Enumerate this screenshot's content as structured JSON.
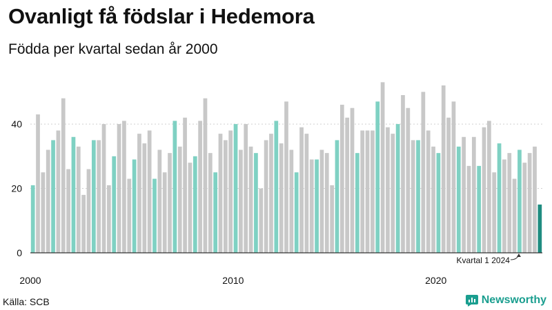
{
  "title": "Ovanligt få födslar i Hedemora",
  "subtitle": "Födda per kvartal sedan år 2000",
  "source": "Källa: SCB",
  "brand": {
    "name": "Newsworthy",
    "icon": "newsworthy-logo-icon"
  },
  "colors": {
    "bar_grey": "#c8c8c8",
    "bar_q1": "#7fd1c3",
    "bar_latest": "#1f8c80",
    "axis": "#333333",
    "grid": "#cfcfcf",
    "brand": "#1a9e8f"
  },
  "chart_data": {
    "type": "bar",
    "title": "Ovanligt få födslar i Hedemora",
    "subtitle": "Födda per kvartal sedan år 2000",
    "xlabel": "",
    "ylabel": "",
    "ylim": [
      0,
      55
    ],
    "yticks": [
      0,
      20,
      40
    ],
    "grid": true,
    "start_year": 2000,
    "xtick_labels": [
      {
        "label": "2000",
        "index": 0
      },
      {
        "label": "2010",
        "index": 40
      },
      {
        "label": "2020",
        "index": 80
      }
    ],
    "highlight": "first quarter of each year",
    "annotation": {
      "text": "Kvartal 1 2024",
      "index": 96
    },
    "values": [
      21,
      43,
      25,
      32,
      35,
      38,
      48,
      26,
      36,
      33,
      18,
      26,
      35,
      35,
      40,
      21,
      30,
      40,
      41,
      23,
      29,
      37,
      34,
      38,
      23,
      32,
      25,
      31,
      41,
      33,
      42,
      28,
      30,
      41,
      48,
      31,
      25,
      37,
      35,
      38,
      40,
      32,
      40,
      33,
      31,
      20,
      35,
      37,
      41,
      34,
      47,
      32,
      25,
      39,
      37,
      29,
      29,
      32,
      31,
      21,
      35,
      46,
      42,
      45,
      31,
      38,
      38,
      38,
      47,
      53,
      39,
      37,
      40,
      49,
      45,
      35,
      35,
      50,
      38,
      33,
      31,
      52,
      42,
      47,
      33,
      36,
      27,
      36,
      27,
      39,
      41,
      25,
      34,
      29,
      31,
      23,
      32,
      28,
      31,
      33,
      15
    ]
  }
}
